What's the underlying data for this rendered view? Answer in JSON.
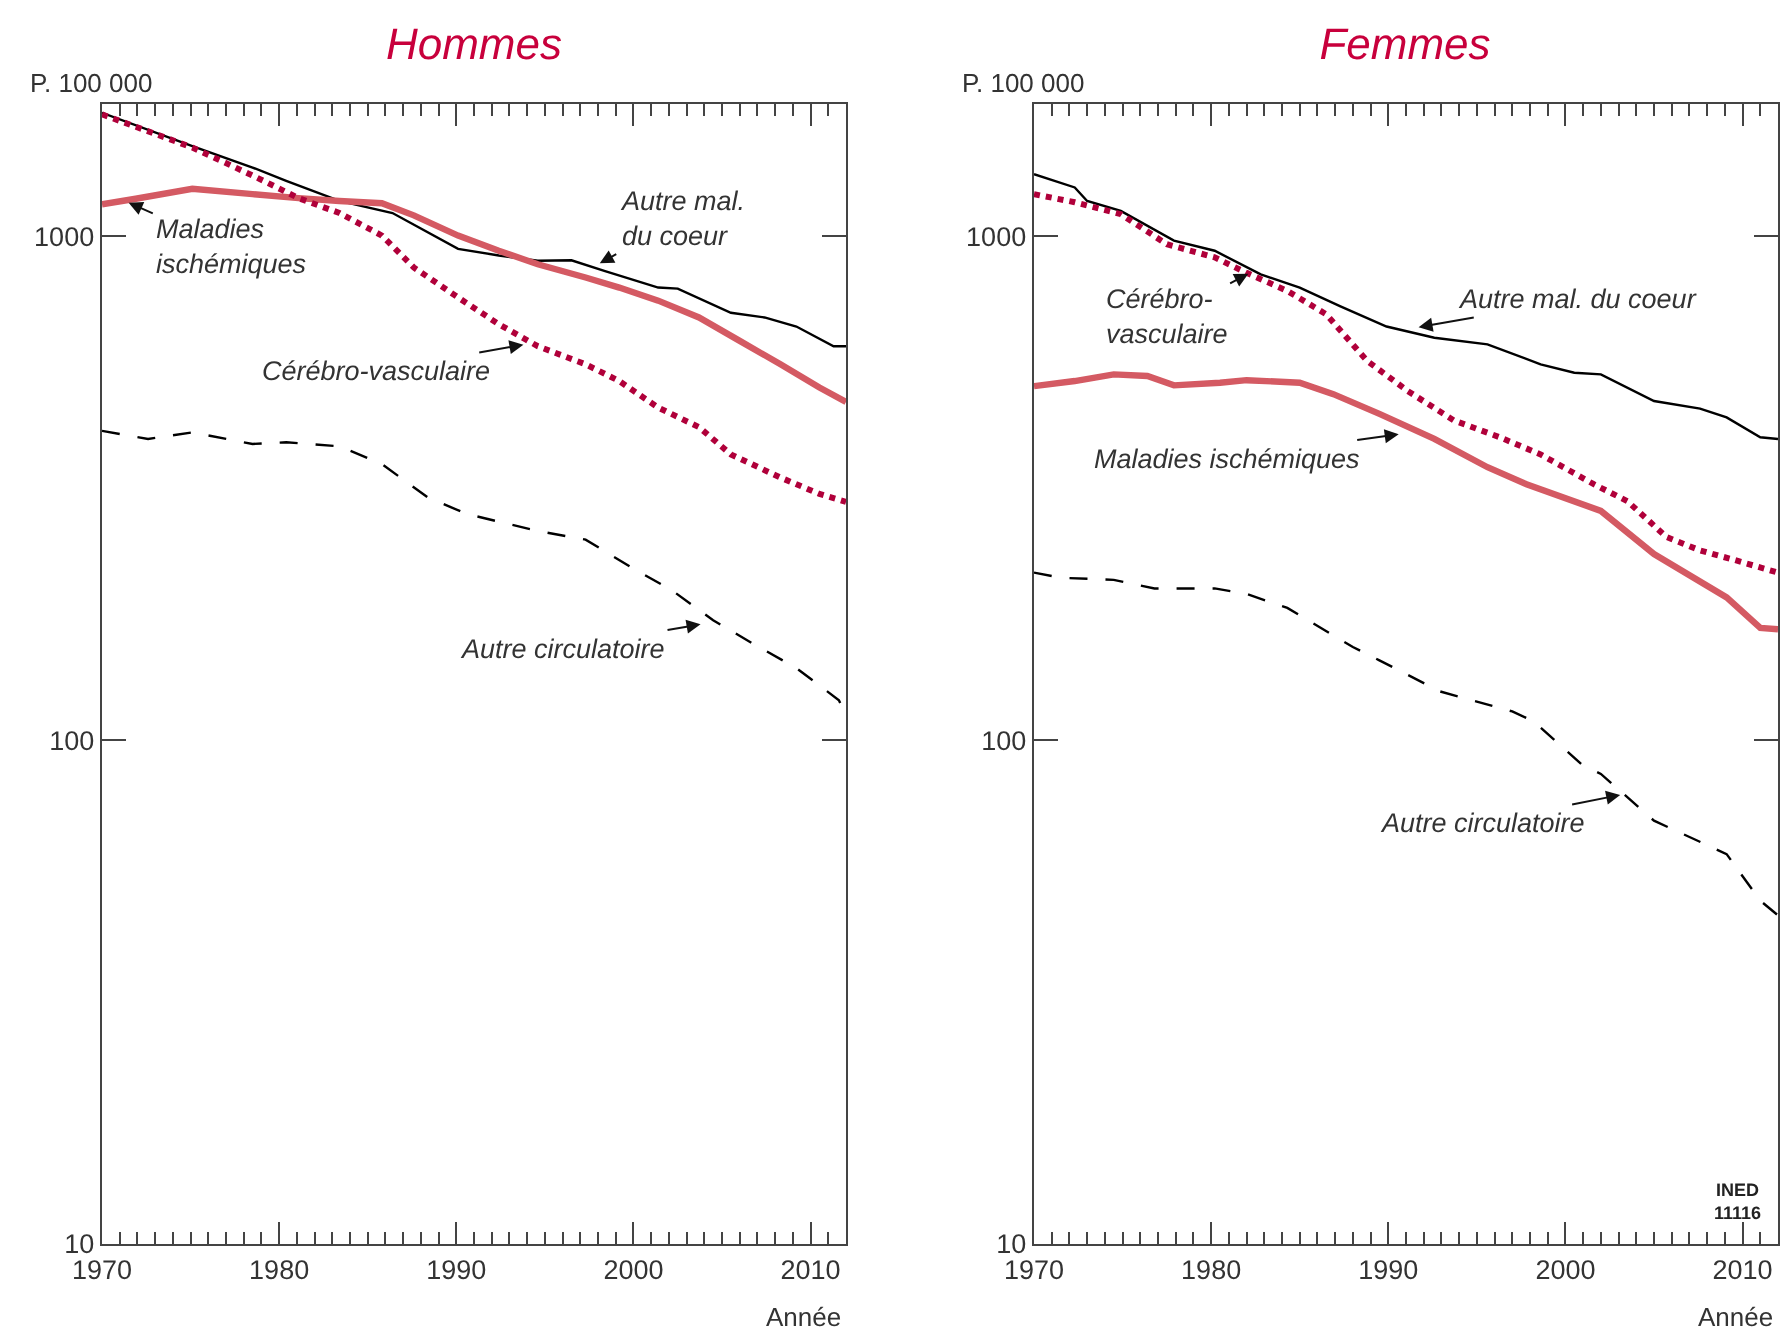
{
  "chart_data": [
    {
      "type": "line",
      "title": "Hommes",
      "ylabel": "P. 100 000",
      "xlabel": "Année",
      "log": "y",
      "grid": false,
      "marker": "none",
      "xlim": [
        1970,
        2012
      ],
      "xticks": [
        1970,
        1980,
        1990,
        2000,
        2010
      ],
      "ylim": [
        10,
        1830
      ],
      "yticks": [
        10,
        100,
        1000
      ],
      "series": [
        {
          "color": "#000000",
          "line_style": "solid",
          "x": [
            1970,
            1975.1,
            1978.5,
            1980.4,
            1983.4,
            1986.4,
            1990.1,
            1992.4,
            1994.6,
            1996.5,
            1998.4,
            2001.4,
            2002.5,
            2005.5,
            2007.4,
            2009.2,
            2011.3,
            2012
          ],
          "values": [
            1758,
            1510,
            1369,
            1288,
            1175,
            1112,
            944,
            916,
            894,
            896,
            853,
            791,
            787,
            705,
            690,
            662,
            605,
            605
          ]
        },
        {
          "color": "#d45a63",
          "line_style": "solid",
          "x": [
            1970,
            1971.9,
            1975.1,
            1978.5,
            1981.1,
            1983.4,
            1985.8,
            1987.6,
            1990.1,
            1992.4,
            1994.6,
            1997.3,
            1999.2,
            2001.4,
            2003.7,
            2006,
            2008.3,
            2010.5,
            2012
          ],
          "values": [
            1157,
            1187,
            1242,
            1212,
            1190,
            1175,
            1163,
            1100,
            1003,
            936,
            880,
            828,
            791,
            745,
            690,
            620,
            557,
            501,
            469
          ]
        },
        {
          "color": "#b0003a",
          "line_style": "dotted",
          "x": [
            1970,
            1975.1,
            1978.5,
            1981.1,
            1983.4,
            1985.8,
            1987.6,
            1990.1,
            1992.4,
            1994.6,
            1997.3,
            1999.2,
            2001.4,
            2003.7,
            2005.5,
            2008.3,
            2010.5,
            2012
          ],
          "values": [
            1745,
            1500,
            1320,
            1190,
            1112,
            1003,
            867,
            756,
            669,
            605,
            557,
            516,
            457,
            418,
            369,
            332,
            308,
            297
          ]
        },
        {
          "color": "#000000",
          "line_style": "dashed",
          "x": [
            1970,
            1972.6,
            1975.1,
            1978.5,
            1980.4,
            1983.4,
            1985.8,
            1988.4,
            1990.6,
            1994.6,
            1997.3,
            1999.9,
            2002.2,
            2004.5,
            2006.8,
            2009.2,
            2011.6,
            2012
          ],
          "values": [
            411,
            396,
            408,
            387,
            390,
            383,
            353,
            303,
            281,
            260,
            250,
            220,
            198,
            173,
            155,
            139,
            120,
            112
          ]
        }
      ],
      "annotations": [
        {
          "text": "Maladies\nischémiques",
          "x": 1971.4,
          "y": 1170
        },
        {
          "text": "Autre mal.\ndu coeur",
          "x": 1998,
          "y": 880
        },
        {
          "text": "Cérébro-vasculaire",
          "x": 1993.9,
          "y": 610
        },
        {
          "text": "Autre circulatoire",
          "x": 2003.9,
          "y": 170
        }
      ]
    },
    {
      "type": "line",
      "title": "Femmes",
      "ylabel": "P. 100 000",
      "xlabel": "Année",
      "log": "y",
      "grid": false,
      "marker": "none",
      "xlim": [
        1970,
        2012
      ],
      "xticks": [
        1970,
        1980,
        1990,
        2000,
        2010
      ],
      "ylim": [
        10,
        1830
      ],
      "yticks": [
        10,
        100,
        1000
      ],
      "series": [
        {
          "color": "#000000",
          "line_style": "solid",
          "x": [
            1970,
            1972.3,
            1973,
            1974.9,
            1977.9,
            1980.2,
            1982.8,
            1985,
            1987.3,
            1989.9,
            1992.6,
            1995.6,
            1998.6,
            2000.5,
            2002,
            2005,
            2007.6,
            2009.1,
            2011,
            2012
          ],
          "values": [
            1328,
            1250,
            1175,
            1123,
            980,
            936,
            840,
            791,
            726,
            662,
            629,
            610,
            557,
            536,
            532,
            471,
            455,
            437,
            399,
            396
          ]
        },
        {
          "color": "#d45a63",
          "line_style": "solid",
          "x": [
            1970,
            1972.3,
            1974.5,
            1976.4,
            1977.9,
            1980.5,
            1982,
            1985,
            1986.9,
            1989.5,
            1992.6,
            1995.6,
            1997.8,
            2002,
            2005,
            2009.1,
            2011,
            2012
          ],
          "values": [
            504,
            516,
            532,
            528,
            506,
            512,
            518,
            512,
            486,
            444,
            396,
            348,
            322,
            285,
            234,
            192,
            167,
            166
          ]
        },
        {
          "color": "#b0003a",
          "line_style": "dotted",
          "x": [
            1970,
            1972.3,
            1974.9,
            1977.5,
            1980.2,
            1982,
            1984.3,
            1986.5,
            1988.8,
            1991.1,
            1993.7,
            1996.3,
            1998.6,
            2001.6,
            2003.5,
            2005.7,
            2007.6,
            2009.5,
            2012
          ],
          "values": [
            1212,
            1168,
            1106,
            964,
            908,
            846,
            779,
            700,
            566,
            493,
            431,
            399,
            369,
            322,
            298,
            253,
            238,
            228,
            215
          ]
        },
        {
          "color": "#000000",
          "line_style": "dashed",
          "x": [
            1970,
            1971.5,
            1974.5,
            1976.8,
            1980.2,
            1982,
            1984.3,
            1988,
            1989.5,
            1992.9,
            1997,
            1998.2,
            2000.9,
            2002,
            2005,
            2009.1,
            2011,
            2012
          ],
          "values": [
            215,
            210,
            208,
            200,
            200,
            195,
            183,
            153,
            144,
            125,
            114,
            109,
            89.6,
            85.7,
            69.2,
            59.4,
            48,
            44.9
          ]
        }
      ],
      "annotations": [
        {
          "text": "Cérébro-\nvasculaire",
          "x": 1982.2,
          "y": 846
        },
        {
          "text": "Autre mal. du coeur",
          "x": 1991.6,
          "y": 659
        },
        {
          "text": "Maladies ischémiques",
          "x": 1990.7,
          "y": 405
        },
        {
          "text": "Autre circulatoire",
          "x": 2003.2,
          "y": 78
        },
        "INED\n11116"
      ]
    }
  ]
}
